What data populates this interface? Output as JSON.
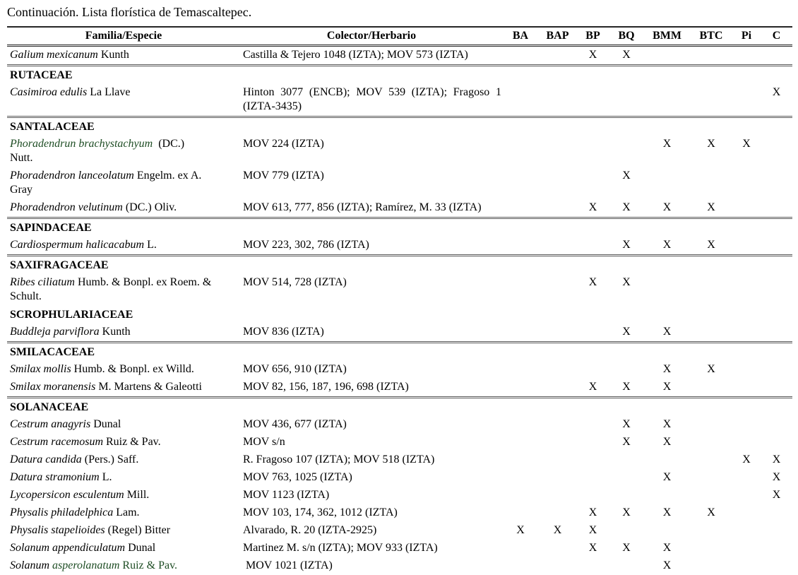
{
  "title": "Continuación. Lista florística de Temascaltepec.",
  "table": {
    "headers": [
      "Familia/Especie",
      "Colector/Herbario",
      "BA",
      "BAP",
      "BP",
      "BQ",
      "BMM",
      "BTC",
      "Pi",
      "C"
    ],
    "habitat_columns": [
      "BA",
      "BAP",
      "BP",
      "BQ",
      "BMM",
      "BTC",
      "Pi",
      "C"
    ],
    "mark": "X",
    "colors": {
      "species_highlight": "#1e4d24"
    },
    "rows": [
      {
        "type": "species",
        "name_parts": [
          {
            "t": "Galium mexicanum",
            "i": true
          },
          {
            "t": " Kunth"
          }
        ],
        "collector": "Castilla & Tejero 1048 (IZTA); MOV 573 (IZTA)",
        "marks": [
          "BP",
          "BQ"
        ]
      },
      {
        "type": "family",
        "name": "RUTACEAE",
        "divider": true
      },
      {
        "type": "species",
        "name_parts": [
          {
            "t": "Casimiroa edulis",
            "i": true
          },
          {
            "t": " La Llave"
          }
        ],
        "collector": {
          "lines": [
            "Hinton 3077 (ENCB); MOV 539 (IZTA); Fragoso 1",
            "(IZTA-3435)"
          ],
          "justify": true
        },
        "marks": [
          "C"
        ]
      },
      {
        "type": "family",
        "name": "SANTALACEAE",
        "divider": true
      },
      {
        "type": "species",
        "name_parts": [
          {
            "t": "Phoradendrun brachystachyum",
            "i": true,
            "g": true
          },
          {
            "t": "  (DC.)"
          },
          {
            "br": true
          },
          {
            "t": "Nutt."
          }
        ],
        "collector": "MOV 224 (IZTA)",
        "marks": [
          "BMM",
          "BTC",
          "Pi"
        ]
      },
      {
        "type": "species",
        "name_parts": [
          {
            "t": "Phoradendron lanceolatum",
            "i": true
          },
          {
            "t": " Engelm. ex A."
          },
          {
            "br": true
          },
          {
            "t": "Gray"
          }
        ],
        "collector": "MOV 779 (IZTA)",
        "marks": [
          "BQ"
        ]
      },
      {
        "type": "species",
        "name_parts": [
          {
            "t": "Phoradendron velutinum",
            "i": true
          },
          {
            "t": " (DC.) Oliv."
          }
        ],
        "collector": "MOV 613, 777, 856 (IZTA); Ramírez, M. 33 (IZTA)",
        "marks": [
          "BP",
          "BQ",
          "BMM",
          "BTC"
        ]
      },
      {
        "type": "family",
        "name": "SAPINDACEAE",
        "divider": true
      },
      {
        "type": "species",
        "name_parts": [
          {
            "t": "Cardiospermum halicacabum",
            "i": true
          },
          {
            "t": " L."
          }
        ],
        "collector": "MOV 223, 302, 786 (IZTA)",
        "marks": [
          "BQ",
          "BMM",
          "BTC"
        ]
      },
      {
        "type": "family",
        "name": "SAXIFRAGACEAE",
        "divider": true
      },
      {
        "type": "species",
        "name_parts": [
          {
            "t": "Ribes ciliatum",
            "i": true
          },
          {
            "t": " Humb. & Bonpl. ex Roem. &"
          },
          {
            "br": true
          },
          {
            "t": "Schult."
          }
        ],
        "collector": "MOV 514, 728 (IZTA)",
        "marks": [
          "BP",
          "BQ"
        ]
      },
      {
        "type": "family",
        "name": "SCROPHULARIACEAE",
        "divider": false
      },
      {
        "type": "species",
        "name_parts": [
          {
            "t": "Buddleja parviflora",
            "i": true
          },
          {
            "t": " Kunth"
          }
        ],
        "collector": "MOV 836 (IZTA)",
        "marks": [
          "BQ",
          "BMM"
        ]
      },
      {
        "type": "family",
        "name": "SMILACACEAE",
        "divider": true
      },
      {
        "type": "species",
        "name_parts": [
          {
            "t": "Smilax mollis",
            "i": true
          },
          {
            "t": " Humb. & Bonpl. ex Willd."
          }
        ],
        "collector": "MOV 656, 910 (IZTA)",
        "marks": [
          "BMM",
          "BTC"
        ]
      },
      {
        "type": "species",
        "name_parts": [
          {
            "t": "Smilax moranensis",
            "i": true
          },
          {
            "t": " M. Martens & Galeotti"
          }
        ],
        "collector": "MOV 82, 156, 187, 196, 698 (IZTA)",
        "marks": [
          "BP",
          "BQ",
          "BMM"
        ]
      },
      {
        "type": "family",
        "name": "SOLANACEAE",
        "divider": true
      },
      {
        "type": "species",
        "name_parts": [
          {
            "t": "Cestrum anagyris",
            "i": true
          },
          {
            "t": " Dunal"
          }
        ],
        "collector": "MOV 436, 677 (IZTA)",
        "marks": [
          "BQ",
          "BMM"
        ]
      },
      {
        "type": "species",
        "name_parts": [
          {
            "t": "Cestrum racemosum",
            "i": true
          },
          {
            "t": " Ruiz & Pav."
          }
        ],
        "collector": "MOV s/n",
        "marks": [
          "BQ",
          "BMM"
        ]
      },
      {
        "type": "species",
        "name_parts": [
          {
            "t": "Datura candida",
            "i": true
          },
          {
            "t": " (Pers.) Saff."
          }
        ],
        "collector": "R. Fragoso 107 (IZTA); MOV 518 (IZTA)",
        "marks": [
          "Pi",
          "C"
        ]
      },
      {
        "type": "species",
        "name_parts": [
          {
            "t": "Datura stramonium",
            "i": true
          },
          {
            "t": " L."
          }
        ],
        "collector": "MOV 763, 1025 (IZTA)",
        "marks": [
          "BMM",
          "C"
        ]
      },
      {
        "type": "species",
        "name_parts": [
          {
            "t": "Lycopersicon esculentum",
            "i": true
          },
          {
            "t": " Mill."
          }
        ],
        "collector": "MOV 1123 (IZTA)",
        "marks": [
          "C"
        ]
      },
      {
        "type": "species",
        "name_parts": [
          {
            "t": "Physalis philadelphica",
            "i": true
          },
          {
            "t": " Lam."
          }
        ],
        "collector": "MOV 103, 174, 362, 1012 (IZTA)",
        "marks": [
          "BP",
          "BQ",
          "BMM",
          "BTC"
        ]
      },
      {
        "type": "species",
        "name_parts": [
          {
            "t": "Physalis stapelioides",
            "i": true
          },
          {
            "t": " (Regel) Bitter"
          }
        ],
        "collector": "Alvarado, R. 20 (IZTA-2925)",
        "marks": [
          "BA",
          "BAP",
          "BP"
        ]
      },
      {
        "type": "species",
        "name_parts": [
          {
            "t": "Solanum appendiculatum",
            "i": true
          },
          {
            "t": " Dunal"
          }
        ],
        "collector": "Martinez M. s/n (IZTA); MOV 933 (IZTA)",
        "marks": [
          "BP",
          "BQ",
          "BMM"
        ]
      },
      {
        "type": "species",
        "name_parts": [
          {
            "t": "Solanum",
            "i": true
          },
          {
            "t": " asperolanatum",
            "i": true,
            "g": true
          },
          {
            "t": " Ruiz & Pav.",
            "g": true
          }
        ],
        "collector": " MOV 1021 (IZTA)",
        "marks": [
          "BMM"
        ]
      }
    ]
  }
}
